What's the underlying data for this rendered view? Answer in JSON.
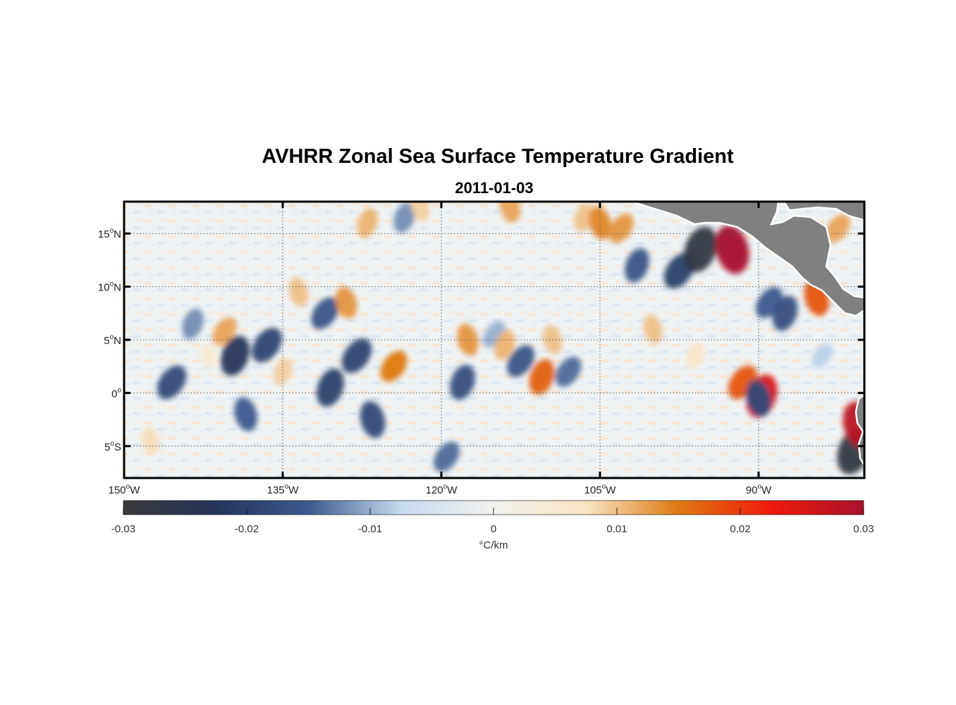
{
  "title": "AVHRR Zonal Sea Surface Temperature Gradient",
  "subtitle": "2011-01-03",
  "map": {
    "lon_range": [
      -150,
      -80
    ],
    "lat_range": [
      -8,
      18
    ],
    "lon_ticks": [
      {
        "value": -150,
        "num": "150",
        "deg": "o",
        "hemi": "W"
      },
      {
        "value": -135,
        "num": "135",
        "deg": "o",
        "hemi": "W"
      },
      {
        "value": -120,
        "num": "120",
        "deg": "o",
        "hemi": "W"
      },
      {
        "value": -105,
        "num": "105",
        "deg": "o",
        "hemi": "W"
      },
      {
        "value": -90,
        "num": "90",
        "deg": "o",
        "hemi": "W"
      }
    ],
    "lat_ticks": [
      {
        "value": 15,
        "num": "15",
        "deg": "o",
        "hemi": "N"
      },
      {
        "value": 10,
        "num": "10",
        "deg": "o",
        "hemi": "N"
      },
      {
        "value": 5,
        "num": "5",
        "deg": "o",
        "hemi": "N"
      },
      {
        "value": 0,
        "num": "0",
        "deg": "o",
        "hemi": ""
      },
      {
        "value": -5,
        "num": "5",
        "deg": "o",
        "hemi": "S"
      }
    ],
    "grid": true,
    "land_color": "#808080",
    "features": [
      {
        "lon": -145.5,
        "lat": 1.0,
        "v": -0.018
      },
      {
        "lon": -143.5,
        "lat": 6.5,
        "v": -0.012
      },
      {
        "lon": -142.0,
        "lat": 3.5,
        "v": 0.005
      },
      {
        "lon": -140.5,
        "lat": 5.8,
        "v": 0.012
      },
      {
        "lon": -139.5,
        "lat": 3.5,
        "v": -0.022
      },
      {
        "lon": -138.5,
        "lat": -2.0,
        "v": -0.015
      },
      {
        "lon": -136.5,
        "lat": 4.5,
        "v": -0.019
      },
      {
        "lon": -135.0,
        "lat": 2.0,
        "v": 0.009
      },
      {
        "lon": -133.5,
        "lat": 9.5,
        "v": 0.01
      },
      {
        "lon": -131.0,
        "lat": 7.5,
        "v": -0.016
      },
      {
        "lon": -130.5,
        "lat": 0.5,
        "v": -0.02
      },
      {
        "lon": -129.0,
        "lat": 8.5,
        "v": 0.013
      },
      {
        "lon": -128.0,
        "lat": 3.5,
        "v": -0.019
      },
      {
        "lon": -127.0,
        "lat": 16.0,
        "v": 0.011
      },
      {
        "lon": -126.5,
        "lat": -2.5,
        "v": -0.018
      },
      {
        "lon": -124.5,
        "lat": 2.5,
        "v": 0.015
      },
      {
        "lon": -123.5,
        "lat": 16.5,
        "v": -0.012
      },
      {
        "lon": -122.0,
        "lat": 17.5,
        "v": 0.009
      },
      {
        "lon": -119.5,
        "lat": -6.0,
        "v": -0.014
      },
      {
        "lon": -118.0,
        "lat": 1.0,
        "v": -0.017
      },
      {
        "lon": -117.5,
        "lat": 5.0,
        "v": 0.013
      },
      {
        "lon": -115.0,
        "lat": 5.5,
        "v": -0.01
      },
      {
        "lon": -114.0,
        "lat": 4.5,
        "v": 0.011
      },
      {
        "lon": -113.5,
        "lat": 17.5,
        "v": 0.012
      },
      {
        "lon": -112.5,
        "lat": 3.0,
        "v": -0.016
      },
      {
        "lon": -110.5,
        "lat": 1.5,
        "v": 0.017
      },
      {
        "lon": -109.5,
        "lat": 5.0,
        "v": 0.01
      },
      {
        "lon": -108.0,
        "lat": 2.0,
        "v": -0.014
      },
      {
        "lon": -106.5,
        "lat": 16.5,
        "v": 0.01
      },
      {
        "lon": -105.0,
        "lat": 16.0,
        "v": 0.014
      },
      {
        "lon": -103.0,
        "lat": 15.5,
        "v": 0.013
      },
      {
        "lon": -101.5,
        "lat": 12.0,
        "v": -0.016
      },
      {
        "lon": -100.0,
        "lat": 6.0,
        "v": 0.01
      },
      {
        "lon": -97.5,
        "lat": 11.5,
        "v": -0.02
      },
      {
        "lon": -95.5,
        "lat": 13.5,
        "v": -0.028
      },
      {
        "lon": -92.5,
        "lat": 13.5,
        "v": 0.03
      },
      {
        "lon": -91.5,
        "lat": 1.0,
        "v": 0.018
      },
      {
        "lon": -89.7,
        "lat": -0.3,
        "v": 0.025
      },
      {
        "lon": -90.0,
        "lat": -0.5,
        "v": -0.018
      },
      {
        "lon": -89.0,
        "lat": 8.5,
        "v": -0.015
      },
      {
        "lon": -87.5,
        "lat": 7.5,
        "v": -0.017
      },
      {
        "lon": -84.5,
        "lat": 9.0,
        "v": 0.018
      },
      {
        "lon": -82.5,
        "lat": 15.5,
        "v": 0.012
      },
      {
        "lon": -81.0,
        "lat": -5.5,
        "v": -0.028
      },
      {
        "lon": -80.5,
        "lat": -3.0,
        "v": 0.028
      },
      {
        "lon": -84.0,
        "lat": 3.5,
        "v": -0.008
      },
      {
        "lon": -96.0,
        "lat": 3.5,
        "v": 0.007
      },
      {
        "lon": -147.5,
        "lat": -4.5,
        "v": 0.008
      }
    ]
  },
  "colorbar": {
    "min": -0.03,
    "max": 0.03,
    "ticks": [
      {
        "value": -0.03,
        "label": "-0.03"
      },
      {
        "value": -0.02,
        "label": "-0.02"
      },
      {
        "value": -0.01,
        "label": "-0.01"
      },
      {
        "value": 0,
        "label": "0"
      },
      {
        "value": 0.01,
        "label": "0.01"
      },
      {
        "value": 0.02,
        "label": "0.02"
      },
      {
        "value": 0.03,
        "label": "0.03"
      }
    ],
    "unit_label": "°C/km",
    "color_stops": [
      "#3a3a3a",
      "#25335a",
      "#3c5a8e",
      "#c6d9ee",
      "#f2f2ee",
      "#f8e4c4",
      "#de7a12",
      "#f01a0a",
      "#a8122e"
    ]
  }
}
